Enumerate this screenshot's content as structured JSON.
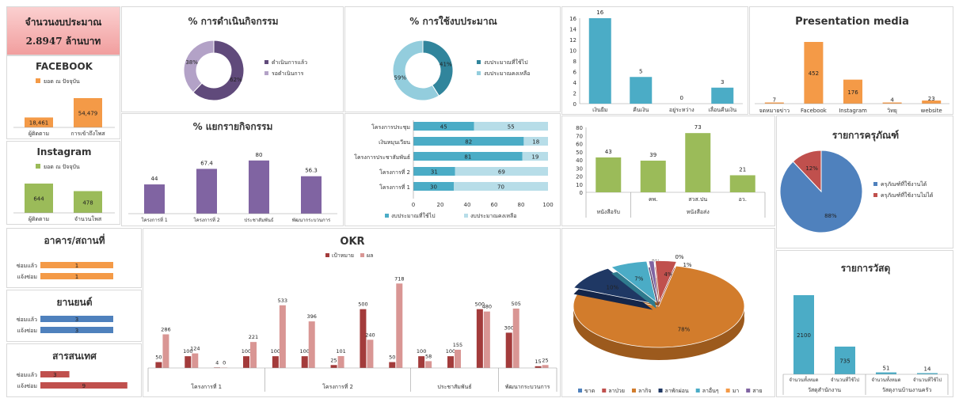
{
  "budget": {
    "title": "จำนวนงบประมาณ",
    "amount": "2.8947 ล้านบาท"
  },
  "colors": {
    "orange": "#f49a47",
    "green": "#9bbb59",
    "purple": "#8064a2",
    "teal": "#4bacc6",
    "lightblue": "#93cddd",
    "blue": "#4f81bd",
    "red": "#c0504d",
    "darkred": "#a33b3b",
    "pink": "#d99694",
    "lavender": "#b3a2c7",
    "darkorange": "#d27c2c"
  },
  "chart_data": [
    {
      "id": "facebook",
      "type": "bar",
      "title": "FACEBOOK",
      "legend": "ยอด ณ ปัจจุบัน",
      "categories": [
        "ผู้ติดตาม",
        "การเข้าถึงโพส"
      ],
      "values": [
        18461,
        54479
      ],
      "labels": [
        "18,461",
        "54,479"
      ],
      "color": "#f49a47"
    },
    {
      "id": "instagram",
      "type": "bar",
      "title": "Instagram",
      "legend": "ยอด ณ ปัจจุบัน",
      "categories": [
        "ผู้ติดตาม",
        "จำนวนโพส"
      ],
      "values": [
        644,
        478
      ],
      "labels": [
        "644",
        "478"
      ],
      "color": "#9bbb59"
    },
    {
      "id": "activity_progress",
      "type": "pie",
      "title": "% การดำเนินกิจกรรม",
      "labels": [
        "ดำเนินการแล้ว",
        "รอดำเนินการ"
      ],
      "values": [
        62,
        38
      ],
      "value_labels": [
        "62%",
        "38%"
      ],
      "colors": [
        "#604a7b",
        "#b3a2c7"
      ]
    },
    {
      "id": "budget_usage",
      "type": "pie",
      "title": "% การใช้งบประมาณ",
      "labels": [
        "งบประมาณที่ใช้ไป",
        "งบประมาณคงเหลือ"
      ],
      "values": [
        41,
        59
      ],
      "value_labels": [
        "41%",
        "59%"
      ],
      "colors": [
        "#31859c",
        "#93cddd"
      ]
    },
    {
      "id": "docs_status",
      "type": "bar",
      "categories": [
        "เงินยืม",
        "คืนเงิน",
        "อยู่ระหว่าง",
        "เลื่อนคืนเงิน"
      ],
      "values": [
        16,
        5,
        0,
        3
      ],
      "ylim": [
        0,
        16
      ],
      "yticks": [
        0,
        2,
        4,
        6,
        8,
        10,
        12,
        14,
        16
      ],
      "color": "#4bacc6"
    },
    {
      "id": "presentation_media",
      "type": "bar",
      "title": "Presentation media",
      "categories": [
        "จดหมายข่าว",
        "Facebook",
        "Instagram",
        "วิทยุ",
        "website"
      ],
      "values": [
        7,
        452,
        176,
        4,
        23
      ],
      "color": "#f49a47"
    },
    {
      "id": "activity_breakdown",
      "type": "bar",
      "title": "% แยกรายกิจกรรม",
      "categories": [
        "โครงการที่ 1",
        "โครงการที่ 2",
        "ประชาสัมพันธ์",
        "พัฒนากระบวนการ"
      ],
      "values": [
        44,
        67.4,
        80,
        56.3
      ],
      "labels": [
        "44",
        "67.4",
        "80",
        "56.3"
      ],
      "color": "#8064a2"
    },
    {
      "id": "project_budget",
      "type": "bar",
      "orientation": "horizontal",
      "stacked": true,
      "categories": [
        "โครงการประชุม",
        "เงินหมุนเวียน",
        "โครงการประชาสัมพันธ์",
        "โครงการที่ 2",
        "โครงการที่ 1"
      ],
      "series": [
        {
          "name": "งบประมาณที่ใช้ไป",
          "values": [
            45,
            82,
            81,
            31,
            30
          ],
          "color": "#4bacc6"
        },
        {
          "name": "งบประมาณคงเหลือ",
          "values": [
            55,
            18,
            19,
            69,
            70
          ],
          "color": "#b7dde8"
        }
      ],
      "xlim": [
        0,
        100
      ],
      "xticks": [
        0,
        20,
        40,
        60,
        80,
        100
      ]
    },
    {
      "id": "letters",
      "type": "bar",
      "categories": [
        "",
        "คพ.",
        "สวส.ปน",
        "อว."
      ],
      "values": [
        43,
        39,
        73,
        21
      ],
      "groups": [
        {
          "label": "หนังสือรับ",
          "from": 0,
          "to": 0
        },
        {
          "label": "หนังสือส่ง",
          "from": 1,
          "to": 3
        }
      ],
      "ylim": [
        0,
        80
      ],
      "yticks": [
        0,
        10,
        20,
        30,
        40,
        50,
        60,
        70,
        80
      ],
      "color": "#9bbb59"
    },
    {
      "id": "equipment",
      "type": "pie",
      "title": "รายการครุภัณฑ์",
      "labels": [
        "ครุภัณฑ์ที่ใช้งานได้",
        "ครุภัณฑ์ที่ใช้งานไม่ได้"
      ],
      "values": [
        88,
        12
      ],
      "value_labels": [
        "88%",
        "12%"
      ],
      "colors": [
        "#4f81bd",
        "#c0504d"
      ]
    },
    {
      "id": "building",
      "type": "bar",
      "orientation": "horizontal",
      "title": "อาคาร/สถานที่",
      "categories": [
        "ซ่อมแล้ว",
        "แจ้งซ่อม"
      ],
      "values": [
        1,
        1
      ],
      "color": "#f49a47"
    },
    {
      "id": "vehicles",
      "type": "bar",
      "orientation": "horizontal",
      "title": "ยานยนต์",
      "categories": [
        "ซ่อมแล้ว",
        "แจ้งซ่อม"
      ],
      "values": [
        3,
        3
      ],
      "color": "#4f81bd"
    },
    {
      "id": "it",
      "type": "bar",
      "orientation": "horizontal",
      "title": "สารสนเทศ",
      "categories": [
        "ซ่อมแล้ว",
        "แจ้งซ่อม"
      ],
      "values": [
        3,
        9
      ],
      "color": "#c0504d"
    },
    {
      "id": "okr",
      "type": "bar",
      "title": "OKR",
      "series": [
        {
          "name": "เป้าหมาย",
          "values": [
            50,
            100,
            4,
            100,
            100,
            100,
            25,
            500,
            50,
            100,
            100,
            500,
            300,
            15
          ],
          "labels": [
            "50",
            "100",
            "4",
            "100",
            "100",
            "100",
            "25",
            "500",
            "50",
            "100",
            "100",
            "500",
            "300",
            "15"
          ],
          "color": "#a33b3b"
        },
        {
          "name": "ผล",
          "values": [
            286,
            124,
            0,
            221,
            533,
            396,
            101,
            240,
            718,
            58,
            155,
            480,
            505,
            25
          ],
          "labels": [
            "286",
            "124",
            "0",
            "221",
            "533",
            "396",
            "101",
            "240",
            "718",
            "58",
            "155",
            "480",
            "505",
            "25"
          ],
          "color": "#d99694"
        }
      ],
      "groups": [
        {
          "label": "โครงการที่ 1",
          "from": 0,
          "to": 3
        },
        {
          "label": "โครงการที่ 2",
          "from": 4,
          "to": 8
        },
        {
          "label": "ประชาสัมพันธ์",
          "from": 9,
          "to": 11
        },
        {
          "label": "พัฒนากระบวนการ",
          "from": 12,
          "to": 13
        }
      ]
    },
    {
      "id": "leave",
      "type": "pie",
      "labels": [
        "ขาด",
        "ลาป่วย",
        "ลากิจ",
        "ลาพักผ่อน",
        "ลาอื่นๆ",
        "มา",
        "สาย"
      ],
      "values": [
        0,
        4,
        78,
        10,
        7,
        0,
        1
      ],
      "value_labels": [
        "0%",
        "4%",
        "78%",
        "10%",
        "7%",
        "0%",
        "1%"
      ],
      "colors": [
        "#4f81bd",
        "#c0504d",
        "#d27c2c",
        "#1f3864",
        "#4bacc6",
        "#f49a47",
        "#8064a2"
      ]
    },
    {
      "id": "supplies",
      "type": "bar",
      "title": "รายการวัสดุ",
      "categories": [
        "จำนวนทั้งหมด",
        "จำนวนที่ใช้ไป",
        "จำนวนทั้งหมด",
        "จำนวนที่ใช้ไป"
      ],
      "values": [
        2100,
        735,
        51,
        14
      ],
      "groups": [
        {
          "label": "วัสดุสำนักงาน",
          "from": 0,
          "to": 1
        },
        {
          "label": "วัสดุงานบ้านงานครัว",
          "from": 2,
          "to": 3
        }
      ],
      "color": "#4bacc6"
    }
  ]
}
